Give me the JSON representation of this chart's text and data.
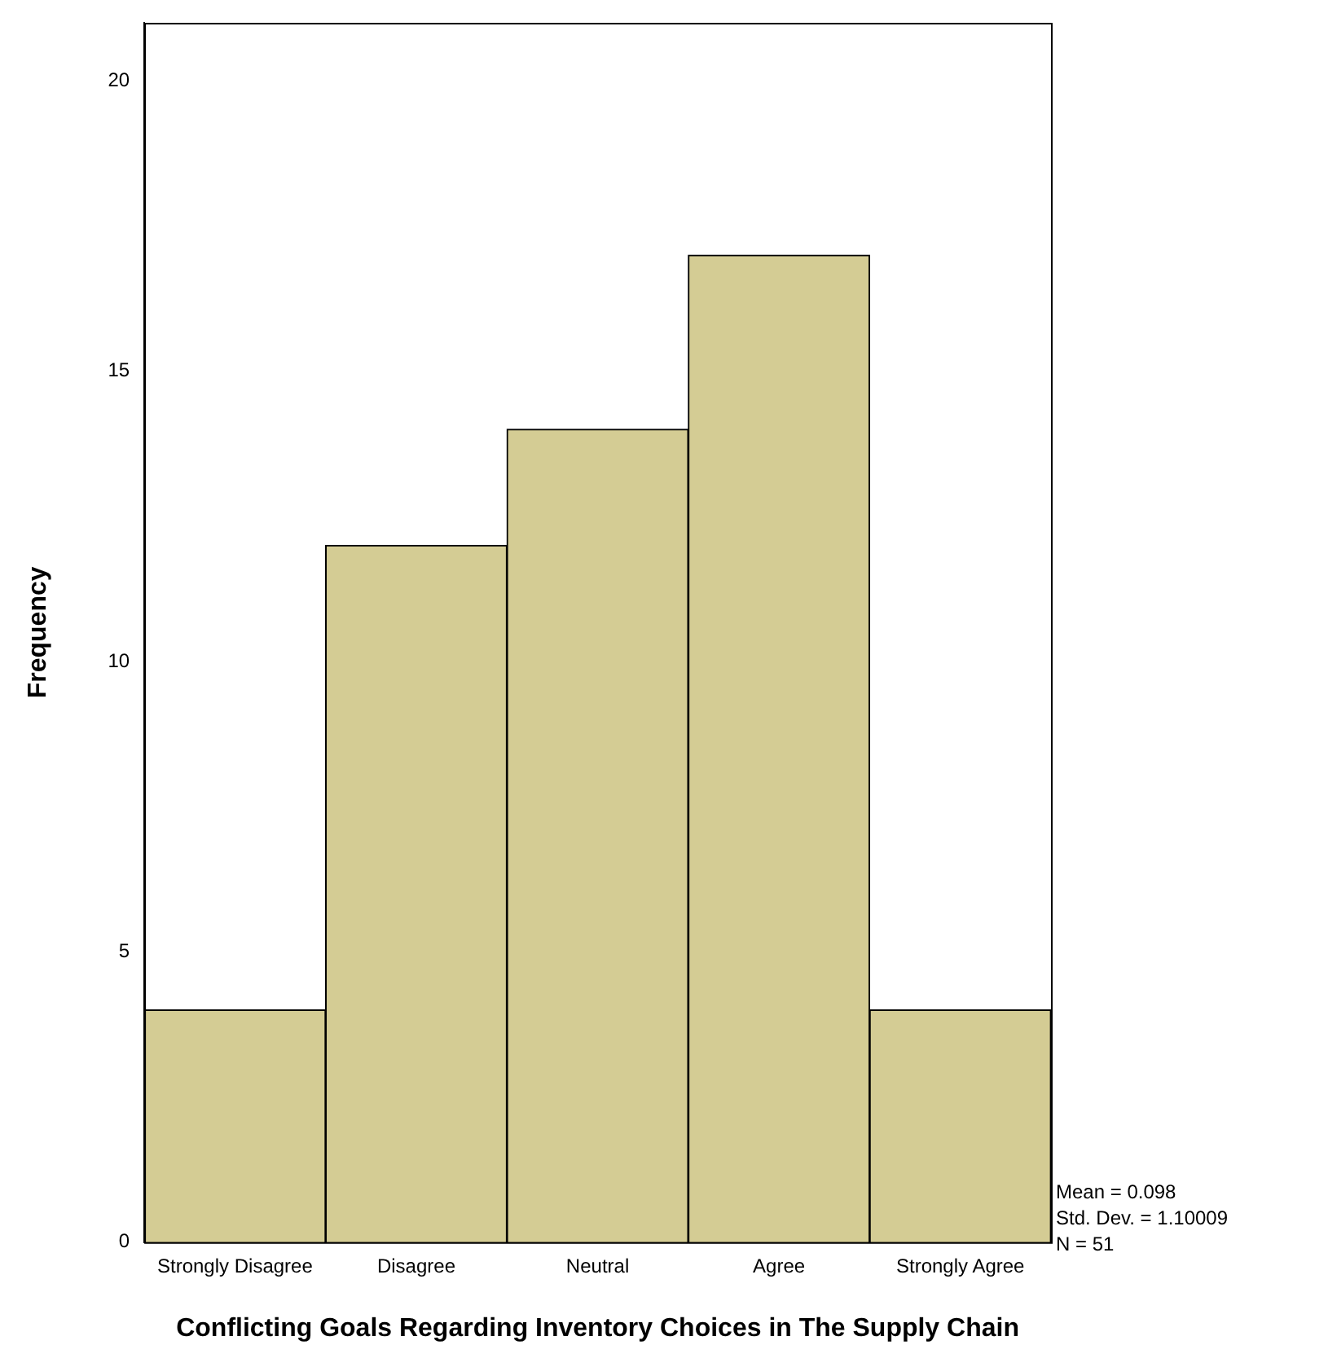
{
  "chart_data": {
    "type": "bar",
    "xlabel": "Conflicting Goals Regarding Inventory Choices in The Supply Chain",
    "ylabel": "Frequency",
    "categories": [
      "Strongly Disagree",
      "Disagree",
      "Neutral",
      "Agree",
      "Strongly Agree"
    ],
    "values": [
      4,
      12,
      14,
      17,
      4
    ],
    "color": "#d4cc94",
    "ylim": [
      0,
      21
    ],
    "yticks": [
      0,
      5,
      10,
      15,
      20
    ],
    "grid": false,
    "legend": false,
    "annotations": [
      "Mean = 0.098",
      "Std. Dev. = 1.10009",
      "N = 51"
    ]
  }
}
